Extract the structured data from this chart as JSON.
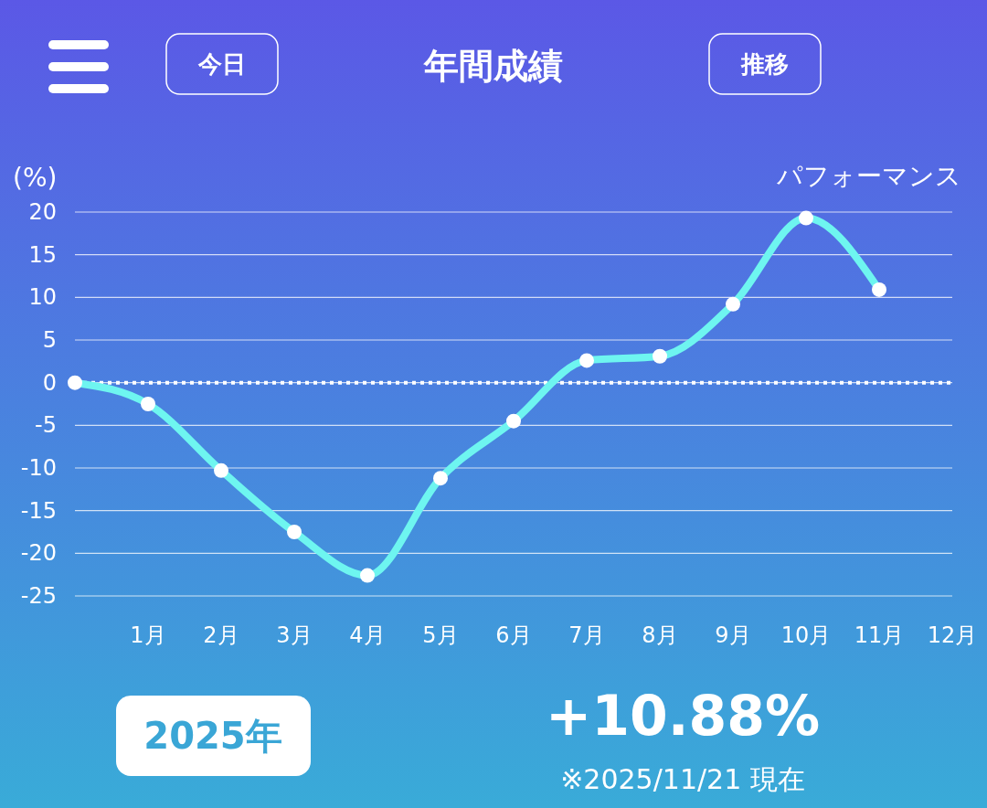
{
  "chart_data": {
    "type": "line",
    "title": "年間成績",
    "ylabel": "(%)",
    "categories": [
      null,
      "1月",
      "2月",
      "3月",
      "4月",
      "5月",
      "6月",
      "7月",
      "8月",
      "9月",
      "10月",
      "11月",
      "12月"
    ],
    "series": [
      {
        "color": "#6ef5f0",
        "values": [
          0,
          -2.5,
          -10.3,
          -17.5,
          -22.6,
          -11.2,
          -4.5,
          2.6,
          3.1,
          9.2,
          19.3,
          10.9,
          null
        ]
      }
    ],
    "ylim": [
      -25,
      20
    ],
    "yticks": [
      -25,
      -20,
      -15,
      -10,
      -5,
      0,
      5,
      10,
      15,
      20
    ],
    "grid": "y",
    "marker": "circle",
    "line_style": "solid",
    "ref_lines": [
      {
        "axis": "y",
        "value": 0,
        "color": "#ffffff",
        "line_style": "dotted"
      }
    ],
    "annotations": [
      "パフォーマンス",
      "今日",
      "推移",
      "2025年",
      "+10.88%",
      "※2025/11/21 現在"
    ]
  }
}
